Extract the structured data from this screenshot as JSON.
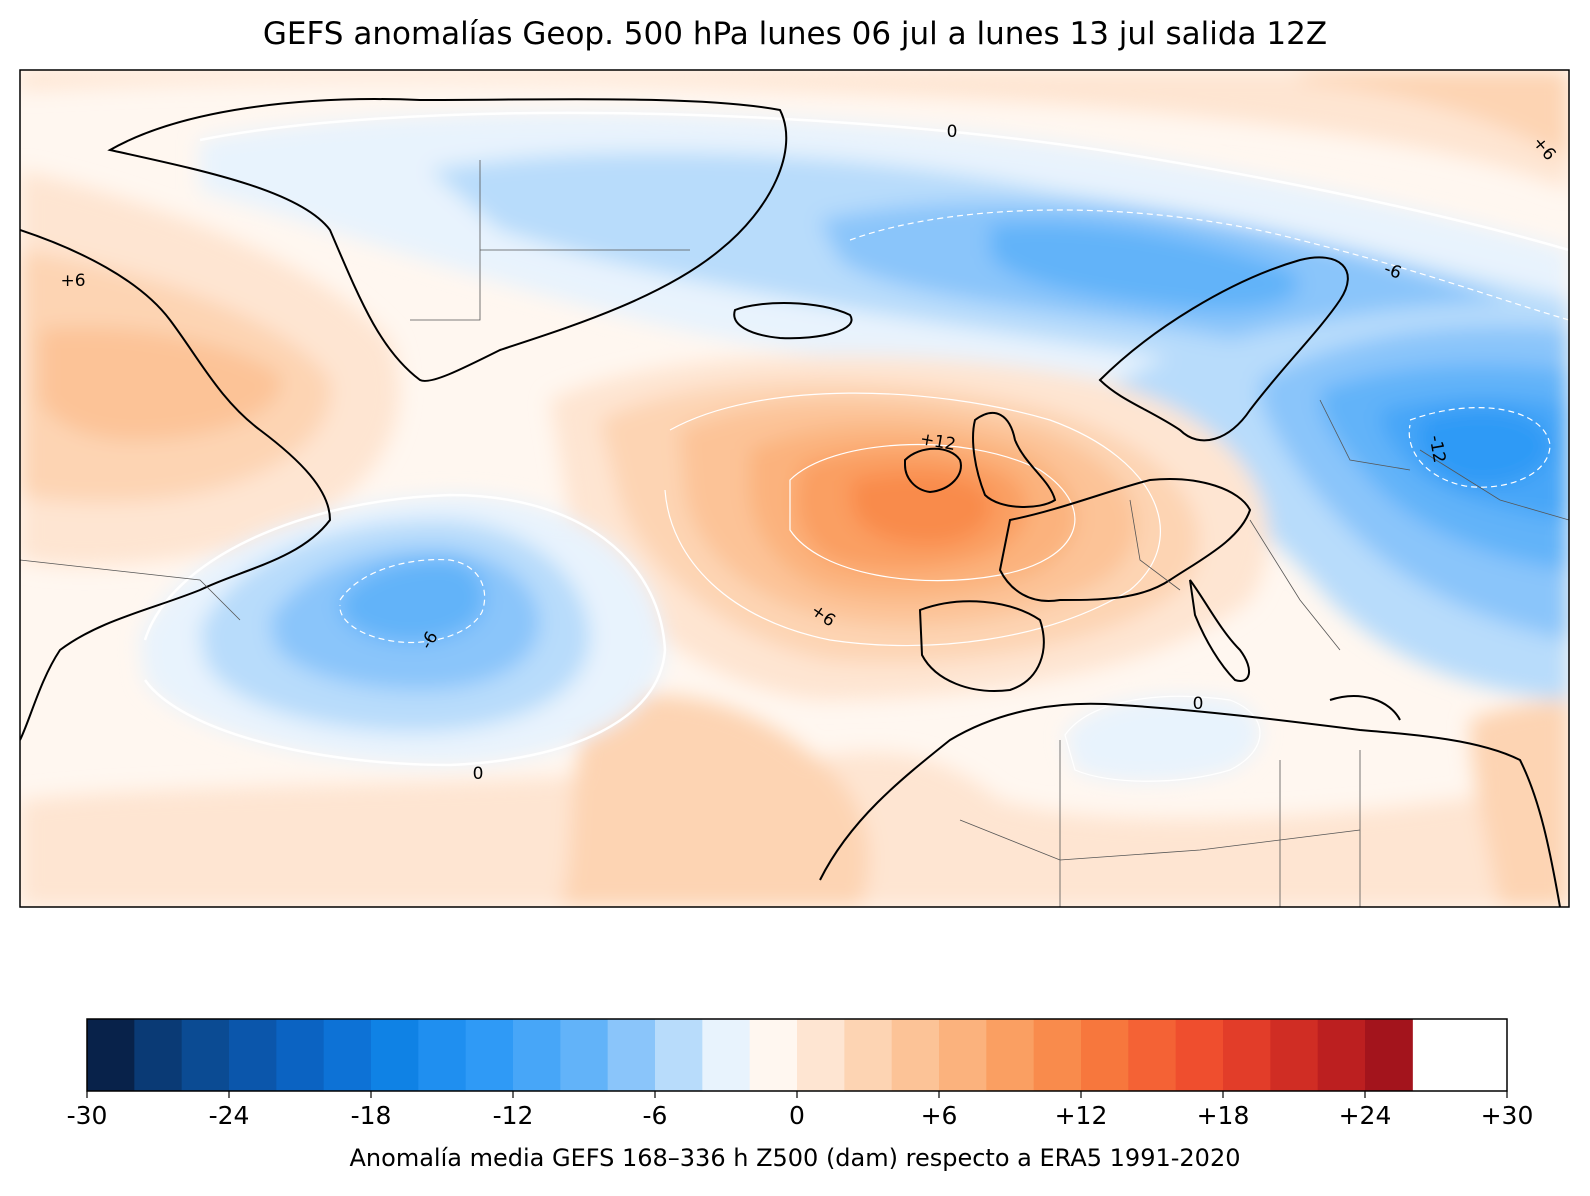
{
  "title": "GEFS anomalías Geop. 500 hPa lunes 06 jul a lunes 13 jul salida 12Z",
  "colorbar": {
    "label": "Anomalía media GEFS 168–336 h Z500 (dam) respecto a ERA5 1991-2020",
    "min": -30,
    "max": 30,
    "step": 2,
    "ticks": [
      -30,
      -24,
      -18,
      -12,
      -6,
      0,
      6,
      12,
      18,
      24,
      30
    ],
    "tick_labels": [
      "-30",
      "-24",
      "-18",
      "-12",
      "-6",
      "0",
      "+6",
      "+12",
      "+18",
      "+24",
      "+30"
    ],
    "colors": [
      "#08224a",
      "#0a3a75",
      "#0b4b93",
      "#0b56ab",
      "#0b63c2",
      "#0d72d6",
      "#0f82e5",
      "#1f8ff0",
      "#2f9af6",
      "#47a6f8",
      "#62b3f9",
      "#8ac5fa",
      "#b8dcfb",
      "#e8f3fd",
      "#fff7f0",
      "#fee5d2",
      "#fdd4b3",
      "#fcc397",
      "#fbb27d",
      "#fa9f62",
      "#f98b4c",
      "#f7773d",
      "#f46235",
      "#ef4e2e",
      "#e23d29",
      "#d02d24",
      "#bc1f20",
      "#a3141c"
    ]
  },
  "contour_labels": [
    "0",
    "+6",
    "+6",
    "-6",
    "+12",
    "-6",
    "+6",
    "-12",
    "0",
    "0"
  ],
  "map": {
    "variable": "Z500 anomaly (dam)",
    "features": {
      "positive_anomaly_max_near_ireland": 14,
      "negative_anomaly_min_scandinavia_russia": -13,
      "negative_anomaly_min_west_atlantic": -7,
      "positive_anomaly_labrador": 8,
      "negative_anomaly_north_atlantic_iceland": -8
    }
  }
}
